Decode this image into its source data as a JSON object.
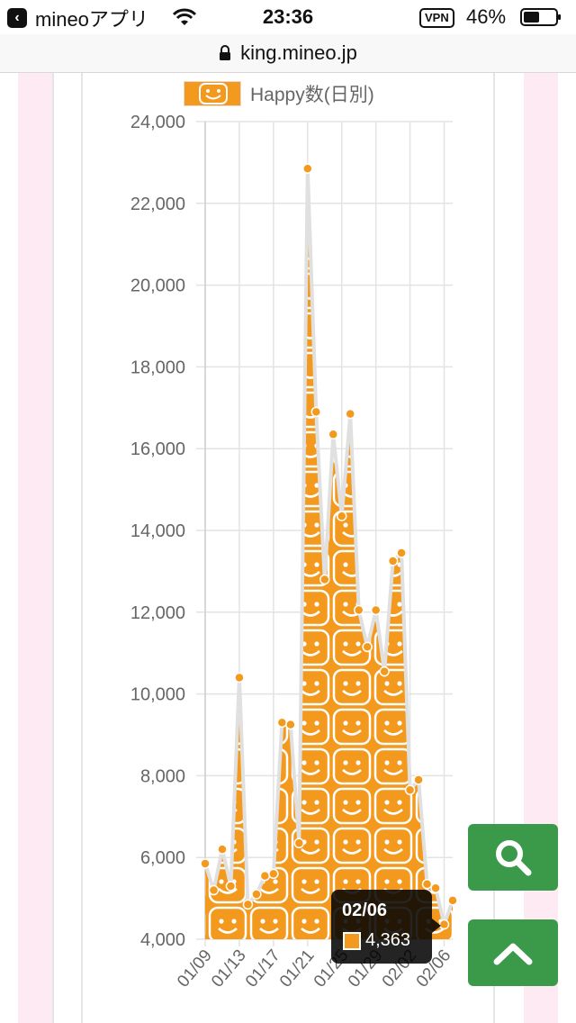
{
  "status_bar": {
    "back_app": "mineoアプリ",
    "time": "23:36",
    "vpn": "VPN",
    "battery": "46%"
  },
  "address_bar": {
    "url": "king.mineo.jp"
  },
  "colors": {
    "series_fill": "#f39a1e",
    "series_line": "#e0e0e0",
    "grid": "#e3e3e3",
    "fab_green": "#3a9a4a",
    "side_band": "#fdeaf3"
  },
  "chart_data": {
    "type": "area",
    "title": "",
    "legend": [
      {
        "label": "Happy数(日別)",
        "position": "top"
      }
    ],
    "xlabel": "",
    "ylabel": "",
    "ylim": [
      4000,
      24000
    ],
    "yticks": [
      4000,
      6000,
      8000,
      10000,
      12000,
      14000,
      16000,
      18000,
      20000,
      22000,
      24000
    ],
    "ytick_labels": [
      "4,000",
      "6,000",
      "8,000",
      "10,000",
      "12,000",
      "14,000",
      "16,000",
      "18,000",
      "20,000",
      "22,000",
      "24,000"
    ],
    "x": [
      "01/09",
      "01/10",
      "01/11",
      "01/12",
      "01/13",
      "01/14",
      "01/15",
      "01/16",
      "01/17",
      "01/18",
      "01/19",
      "01/20",
      "01/21",
      "01/22",
      "01/23",
      "01/24",
      "01/25",
      "01/26",
      "01/27",
      "01/28",
      "01/29",
      "01/30",
      "01/31",
      "02/01",
      "02/02",
      "02/03",
      "02/04",
      "02/05",
      "02/06",
      "02/07"
    ],
    "xtick_labels": [
      "01/09",
      "01/13",
      "01/17",
      "01/21",
      "01/25",
      "01/29",
      "02/02",
      "02/06"
    ],
    "series": [
      {
        "name": "Happy数(日別)",
        "values": [
          5850,
          5200,
          6200,
          5300,
          10400,
          4850,
          5100,
          5550,
          5600,
          9300,
          9250,
          6350,
          22850,
          16900,
          12800,
          16350,
          14350,
          16850,
          12050,
          11150,
          12050,
          10550,
          13250,
          13450,
          7650,
          7900,
          5350,
          5250,
          4363,
          4950
        ]
      }
    ],
    "tooltip": {
      "label": "02/06",
      "value": "4,363"
    }
  },
  "buttons": {
    "search": "search",
    "scroll_top": "scroll to top"
  }
}
